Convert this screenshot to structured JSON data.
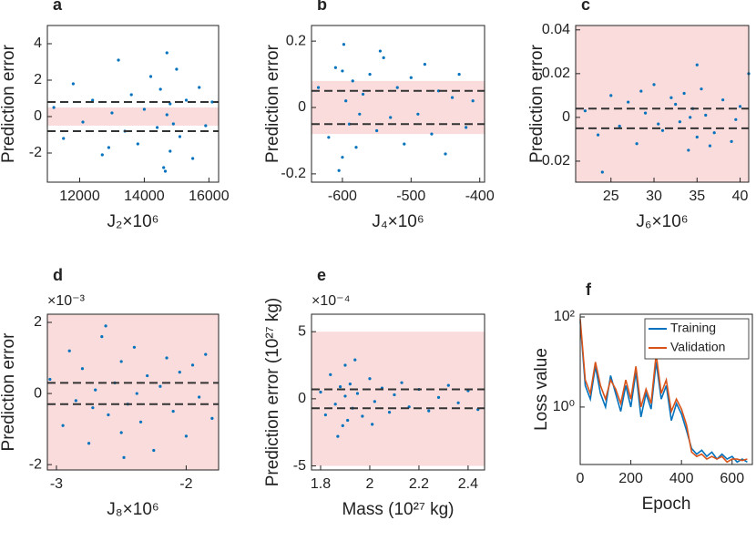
{
  "chart_data": [
    {
      "type": "scatter",
      "panel": "a",
      "xlabel": "J₂×10⁶",
      "ylabel": "Prediction error",
      "xlim": [
        11000,
        16300
      ],
      "ylim": [
        -3.6,
        5
      ],
      "xticks": [
        12000,
        14000,
        16000
      ],
      "yticks": [
        -2,
        0,
        2,
        4
      ],
      "band": [
        -0.5,
        0.5
      ],
      "dashed": [
        -0.8,
        0.8
      ],
      "color": "#0072bd",
      "band_color": "#fbdcdc",
      "x": [
        11200,
        11500,
        11800,
        12100,
        12400,
        12700,
        13000,
        13200,
        13400,
        13600,
        13800,
        14000,
        14200,
        14400,
        14500,
        14600,
        14700,
        14700,
        14800,
        14800,
        14900,
        15000,
        15100,
        15300,
        15500,
        15700,
        15900,
        16100,
        12900,
        14650
      ],
      "values": [
        0.5,
        -1.2,
        1.8,
        -0.3,
        0.9,
        -2.1,
        0.2,
        3.1,
        -0.8,
        1.2,
        -1.5,
        0.4,
        2.2,
        -0.6,
        1.5,
        -2.8,
        0.1,
        3.5,
        -1.9,
        0.7,
        -0.4,
        2.6,
        -1.1,
        0.9,
        -2.3,
        1.6,
        -0.5,
        0.8,
        -1.7,
        -3.0
      ]
    },
    {
      "type": "scatter",
      "panel": "b",
      "xlabel": "J₄×10⁶",
      "ylabel": "Prediction error",
      "xlim": [
        -645,
        -393
      ],
      "ylim": [
        -0.225,
        0.247
      ],
      "xticks": [
        -600,
        -500,
        -400
      ],
      "yticks": [
        -0.2,
        0,
        0.2
      ],
      "band": [
        -0.08,
        0.08
      ],
      "dashed": [
        -0.05,
        0.05
      ],
      "color": "#0072bd",
      "band_color": "#fbdcdc",
      "x": [
        -635,
        -620,
        -610,
        -600,
        -598,
        -595,
        -590,
        -585,
        -580,
        -570,
        -560,
        -550,
        -540,
        -530,
        -520,
        -510,
        -500,
        -490,
        -480,
        -470,
        -460,
        -450,
        -440,
        -430,
        -420,
        -410,
        -605,
        -600,
        -575,
        -545
      ],
      "values": [
        0.06,
        -0.09,
        0.12,
        -0.15,
        0.19,
        0.02,
        -0.05,
        0.08,
        -0.12,
        0.04,
        0.1,
        -0.07,
        0.15,
        -0.03,
        0.06,
        -0.11,
        0.09,
        -0.02,
        0.13,
        -0.08,
        0.05,
        -0.14,
        0.03,
        0.1,
        -0.06,
        0.02,
        -0.19,
        0.11,
        -0.02,
        0.17
      ]
    },
    {
      "type": "scatter",
      "panel": "c",
      "xlabel": "J₆×10⁶",
      "ylabel": "Prediction error",
      "xlim": [
        20.9,
        41
      ],
      "ylim": [
        -0.0296,
        0.042
      ],
      "xticks": [
        25,
        30,
        35,
        40
      ],
      "yticks": [
        -0.02,
        0,
        0.02,
        0.04
      ],
      "band": [
        -0.0296,
        0.042
      ],
      "dashed": [
        -0.005,
        0.004
      ],
      "color": "#0072bd",
      "band_color": "#fbdcdc",
      "x": [
        22,
        23.5,
        25,
        26,
        27,
        28,
        29,
        30,
        31,
        32,
        33,
        33.5,
        34,
        34.5,
        35,
        35.5,
        36,
        37,
        38,
        39,
        40,
        41,
        30.5,
        34.2,
        28.5,
        36.5,
        32.5,
        24,
        39.5,
        35
      ],
      "values": [
        0.003,
        -0.008,
        0.01,
        -0.004,
        0.007,
        -0.012,
        0.002,
        0.015,
        -0.006,
        0.009,
        -0.002,
        0.011,
        -0.015,
        0.004,
        -0.009,
        0.013,
        0.001,
        -0.007,
        0.008,
        -0.011,
        0.005,
        0.02,
        -0.003,
        0,
        0.012,
        -0.013,
        0.006,
        -0.025,
        -0.001,
        0.024
      ]
    },
    {
      "type": "scatter",
      "panel": "d",
      "xlabel": "J₈×10⁶",
      "ylabel": "Prediction error",
      "y_exponent": "×10⁻³",
      "xlim": [
        -3.07,
        -1.75
      ],
      "ylim": [
        -2.15,
        2.23
      ],
      "xticks": [
        -3,
        -2
      ],
      "yticks": [
        -2,
        0,
        2
      ],
      "band": [
        -2.15,
        2.23
      ],
      "dashed": [
        -0.3,
        0.3
      ],
      "color": "#0072bd",
      "band_color": "#fbdcdc",
      "x": [
        -3.05,
        -2.95,
        -2.9,
        -2.85,
        -2.8,
        -2.75,
        -2.7,
        -2.65,
        -2.6,
        -2.55,
        -2.5,
        -2.5,
        -2.45,
        -2.4,
        -2.35,
        -2.3,
        -2.25,
        -2.2,
        -2.15,
        -2.1,
        -2.05,
        -2.0,
        -1.95,
        -1.9,
        -1.85,
        -1.8,
        -2.62,
        -2.48,
        -2.72,
        -2.38
      ],
      "values": [
        0.4,
        -0.9,
        1.2,
        -0.2,
        0.7,
        -1.4,
        0.1,
        1.6,
        -0.6,
        0.3,
        -1.1,
        0.9,
        -0.3,
        1.3,
        -0.8,
        0.5,
        -1.6,
        0.2,
        1.0,
        -0.5,
        0.6,
        -1.2,
        0.8,
        -0.1,
        1.1,
        -0.7,
        1.9,
        -1.8,
        -0.4,
        0
      ]
    },
    {
      "type": "scatter",
      "panel": "e",
      "xlabel": "Mass (10²⁷ kg)",
      "ylabel": "Prediction error (10²⁷ kg)",
      "y_exponent": "×10⁻⁴",
      "xlim": [
        1.763,
        2.467
      ],
      "ylim": [
        -5.3,
        6.3
      ],
      "xticks": [
        1.8,
        2,
        2.2,
        2.4
      ],
      "yticks": [
        -5,
        0,
        5
      ],
      "band": [
        -5,
        5
      ],
      "dashed": [
        -0.7,
        0.7
      ],
      "color": "#0072bd",
      "band_color": "#fbdcdc",
      "x": [
        1.8,
        1.82,
        1.84,
        1.86,
        1.88,
        1.89,
        1.9,
        1.9,
        1.91,
        1.92,
        1.93,
        1.95,
        1.97,
        2.0,
        2.02,
        2.05,
        2.08,
        2.1,
        2.13,
        2.16,
        2.2,
        2.24,
        2.28,
        2.32,
        2.36,
        2.4,
        2.44,
        1.87,
        1.94,
        2.01
      ],
      "values": [
        0.5,
        -1.2,
        1.8,
        -0.4,
        0.9,
        -2.0,
        0.2,
        2.5,
        -1.6,
        1.1,
        -0.7,
        0.4,
        -1.3,
        1.5,
        -0.2,
        0.8,
        -1.0,
        0.3,
        1.2,
        -0.6,
        0.7,
        -0.9,
        0.1,
        1.0,
        -0.3,
        0.6,
        -0.8,
        -2.8,
        2.9,
        -1.9
      ]
    },
    {
      "type": "line",
      "panel": "f",
      "xlabel": "Epoch",
      "ylabel": "Loss value",
      "log_y": true,
      "legend": "top-right",
      "xlim": [
        0,
        680
      ],
      "ylim": [
        0.053,
        115
      ],
      "xticks": [
        0,
        200,
        400,
        600
      ],
      "yticks": [
        {
          "value": 1,
          "label": "10⁰"
        },
        {
          "value": 100,
          "label": "10²"
        }
      ],
      "x": [
        0,
        20,
        40,
        60,
        80,
        100,
        120,
        140,
        160,
        180,
        200,
        220,
        240,
        260,
        280,
        300,
        320,
        340,
        360,
        380,
        400,
        420,
        440,
        460,
        480,
        500,
        520,
        540,
        560,
        580,
        600,
        620,
        640,
        660
      ],
      "series": [
        {
          "name": "Training",
          "color": "#0072bd",
          "values": [
            80,
            3,
            1.5,
            8,
            2,
            1,
            5,
            2,
            0.8,
            3,
            1,
            6,
            0.6,
            2,
            0.9,
            10,
            1.5,
            3,
            0.5,
            1.2,
            0.7,
            0.3,
            0.12,
            0.09,
            0.11,
            0.08,
            0.1,
            0.07,
            0.09,
            0.07,
            0.08,
            0.06,
            0.07,
            0.06
          ]
        },
        {
          "name": "Validation",
          "color": "#d95319",
          "values": [
            90,
            4,
            2,
            10,
            3,
            1.5,
            4,
            2.5,
            1.2,
            4,
            1.5,
            8,
            1,
            2.5,
            1.2,
            15,
            2,
            4,
            0.8,
            1.5,
            0.9,
            0.4,
            0.1,
            0.08,
            0.09,
            0.07,
            0.08,
            0.07,
            0.08,
            0.06,
            0.07,
            0.07,
            0.065,
            0.07
          ]
        }
      ]
    }
  ]
}
